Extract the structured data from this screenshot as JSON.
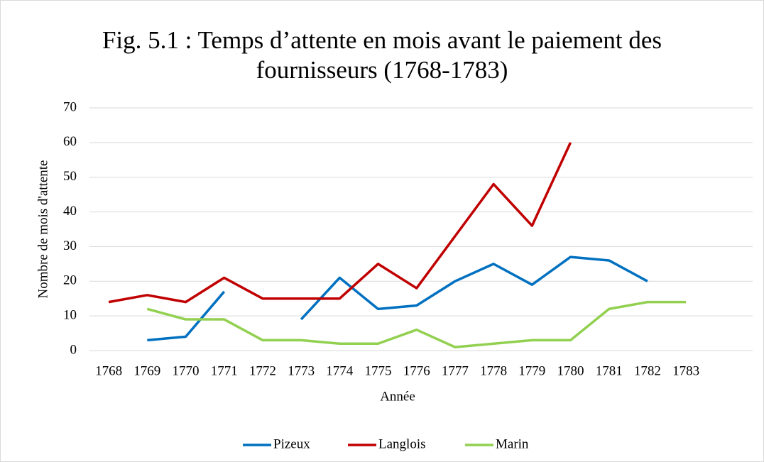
{
  "chart_data": {
    "type": "line",
    "title": "Fig. 5.1 : Temps d’attente en mois avant le paiement des fournisseurs (1768-1783)",
    "x_label": "Année",
    "y_label": "Nombre de mois d'attente",
    "categories": [
      "1768",
      "1769",
      "1770",
      "1771",
      "1772",
      "1773",
      "1774",
      "1775",
      "1776",
      "1777",
      "1778",
      "1779",
      "1780",
      "1781",
      "1782",
      "1783",
      null
    ],
    "series": [
      {
        "name": "Pizeux",
        "color": "#0070c0",
        "values": [
          null,
          3,
          4,
          17,
          null,
          9,
          21,
          12,
          13,
          20,
          25,
          19,
          27,
          26,
          20,
          null,
          null
        ]
      },
      {
        "name": "Langlois",
        "color": "#c00000",
        "values": [
          14,
          16,
          14,
          21,
          15,
          15,
          15,
          25,
          18,
          33,
          48,
          36,
          60,
          null,
          null,
          null,
          null
        ]
      },
      {
        "name": "Marin",
        "color": "#92d050",
        "values": [
          null,
          12,
          9,
          9,
          3,
          3,
          2,
          2,
          6,
          1,
          2,
          3,
          3,
          12,
          14,
          14,
          null
        ]
      }
    ],
    "ylim": [
      0,
      70
    ],
    "yticks": [
      0,
      10,
      20,
      30,
      40,
      50,
      60,
      70
    ],
    "grid": true,
    "legend": "bottom"
  }
}
